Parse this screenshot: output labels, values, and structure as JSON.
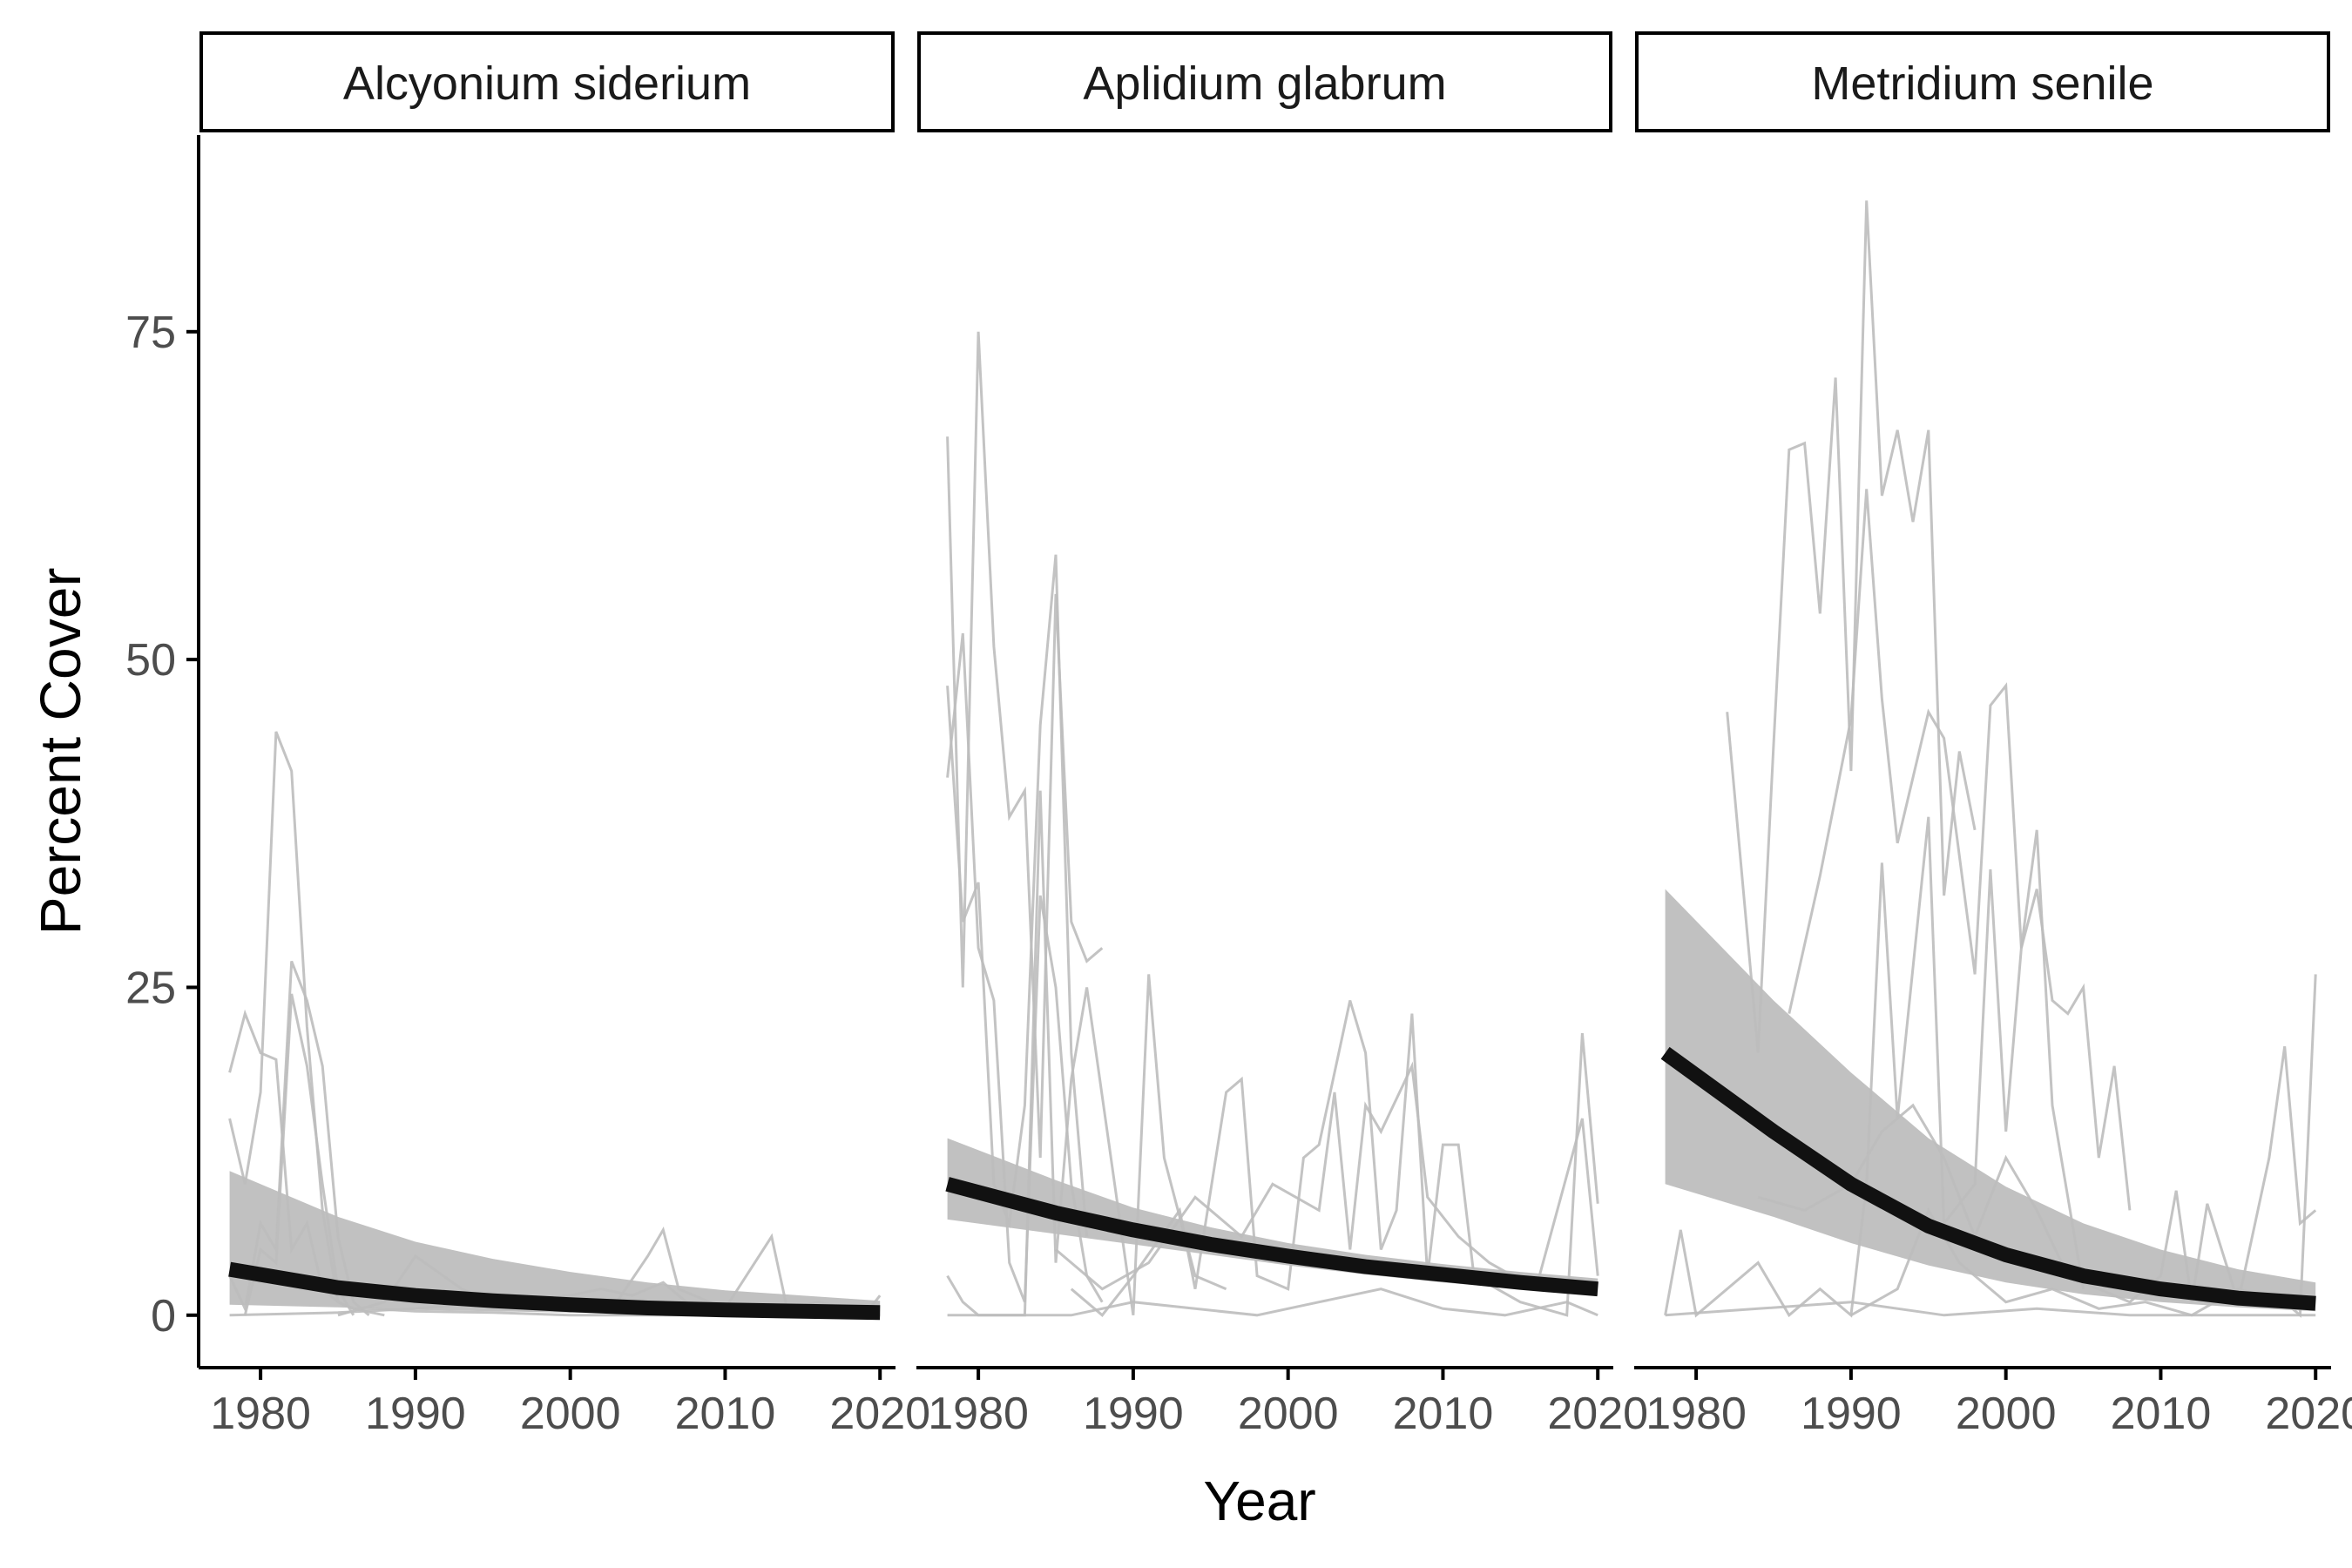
{
  "chart_data": {
    "type": "line",
    "xlabel": "Year",
    "ylabel": "Percent Cover",
    "xlim": [
      1976,
      2021
    ],
    "ylim": [
      -4,
      90
    ],
    "xticks": [
      1980,
      1990,
      2000,
      2010,
      2020
    ],
    "yticks": [
      0,
      25,
      50,
      75
    ],
    "grid": false,
    "colors": {
      "site_lines": "#bdbdbd",
      "ribbon": "#bebebe",
      "fit": "#111111",
      "axis": "#000000",
      "tick_label": "#4d4d4d"
    },
    "panels": [
      {
        "title": "Alcyonium siderium",
        "fit": {
          "x": [
            1978,
            1985,
            1990,
            1995,
            2000,
            2005,
            2010,
            2015,
            2020
          ],
          "y": [
            3.5,
            2.1,
            1.5,
            1.1,
            0.8,
            0.55,
            0.4,
            0.3,
            0.2
          ]
        },
        "ribbon": {
          "x": [
            1978,
            1985,
            1990,
            1995,
            2000,
            2005,
            2010,
            2015,
            2020
          ],
          "lower": [
            0.8,
            0.6,
            0.4,
            0.3,
            0.2,
            0.15,
            0.1,
            0.08,
            0.05
          ],
          "upper": [
            11,
            7.5,
            5.6,
            4.3,
            3.3,
            2.5,
            1.9,
            1.5,
            1.1
          ]
        },
        "sites": [
          {
            "x": [
              1978,
              1979,
              1980,
              1981,
              1982,
              1983,
              1984,
              1985,
              1986,
              1987,
              1990,
              1995,
              2000,
              2005,
              2010,
              2015,
              2020
            ],
            "y": [
              18.5,
              23,
              20,
              19.5,
              5,
              7,
              2,
              1,
              0.5,
              0.5,
              0.3,
              0.2,
              0,
              0,
              0,
              0,
              0
            ]
          },
          {
            "x": [
              1978,
              1979,
              1980,
              1981,
              1982,
              1983,
              1984,
              1985,
              1986,
              1988
            ],
            "y": [
              15,
              10,
              17,
              44.5,
              41.5,
              22,
              8,
              1,
              0.5,
              0
            ]
          },
          {
            "x": [
              1978,
              1979,
              1980,
              1981,
              1982,
              1983,
              1984,
              1985,
              1986,
              1987
            ],
            "y": [
              3,
              0.5,
              7,
              5,
              27,
              24,
              19,
              6,
              1,
              0
            ]
          },
          {
            "x": [
              1979,
              1980,
              1981,
              1982,
              1983,
              1984,
              1985,
              1986
            ],
            "y": [
              0,
              5,
              4,
              24.5,
              19,
              10,
              2,
              0
            ]
          },
          {
            "x": [
              1985,
              1988,
              1990,
              1993,
              1995,
              1998,
              2000,
              2003,
              2005,
              2006,
              2007,
              2010,
              2013,
              2014,
              2016,
              2018,
              2019,
              2020
            ],
            "y": [
              0,
              1,
              4.5,
              2,
              1,
              0.5,
              0.3,
              1,
              4.5,
              6.5,
              2,
              0.5,
              6,
              0.5,
              1,
              0.5,
              0,
              1.5
            ]
          },
          {
            "x": [
              1978,
              1985,
              1990,
              1995,
              2000,
              2002,
              2004,
              2006,
              2008,
              2010,
              2015,
              2020
            ],
            "y": [
              0,
              0.2,
              0.5,
              1,
              1.5,
              2,
              1.5,
              2.5,
              0.5,
              0,
              0,
              0
            ]
          }
        ]
      },
      {
        "title": "Aplidium glabrum",
        "fit": {
          "x": [
            1978,
            1985,
            1990,
            1995,
            2000,
            2005,
            2010,
            2015,
            2020
          ],
          "y": [
            10,
            7.8,
            6.5,
            5.4,
            4.5,
            3.7,
            3.1,
            2.5,
            2.0
          ]
        },
        "ribbon": {
          "x": [
            1978,
            1985,
            1990,
            1995,
            2000,
            2005,
            2010,
            2015,
            2020
          ],
          "lower": [
            7.3,
            6.2,
            5.4,
            4.6,
            3.8,
            3.1,
            2.5,
            2.0,
            1.5
          ],
          "upper": [
            13.5,
            10.3,
            8.2,
            6.7,
            5.5,
            4.6,
            3.9,
            3.3,
            2.8
          ]
        },
        "sites": [
          {
            "x": [
              1978,
              1979,
              1980,
              1981,
              1982,
              1983,
              1984,
              1985,
              1986,
              1987,
              1988
            ],
            "y": [
              67,
              25,
              75,
              51,
              38,
              40,
              12,
              55,
              30,
              27,
              28
            ]
          },
          {
            "x": [
              1978,
              1979,
              1980,
              1981,
              1982,
              1983,
              1984,
              1985,
              1986,
              1987
            ],
            "y": [
              48,
              30,
              33,
              10,
              7,
              16,
              45,
              58,
              20,
              6
            ]
          },
          {
            "x": [
              1978,
              1979,
              1980,
              1981,
              1982,
              1983,
              1984,
              1985,
              1986,
              1987,
              1988
            ],
            "y": [
              41,
              52,
              28,
              24,
              4,
              1,
              32,
              25,
              10,
              3,
              1
            ]
          },
          {
            "x": [
              1978,
              1979,
              1980,
              1983,
              1984,
              1985,
              1986,
              1987,
              1990,
              1991,
              1992,
              1994,
              1996
            ],
            "y": [
              3,
              1,
              0,
              0,
              40,
              4,
              18,
              25,
              0,
              26,
              12,
              3,
              2
            ]
          },
          {
            "x": [
              1986,
              1988,
              1990,
              1993,
              1994,
              1996,
              1997,
              1998,
              2000,
              2001,
              2002,
              2004,
              2005,
              2006,
              2007,
              2008,
              2009,
              2010,
              2011,
              2012,
              2015,
              2018,
              2019,
              2020
            ],
            "y": [
              2,
              0,
              3,
              8,
              2,
              17,
              18,
              3,
              2,
              12,
              13,
              24,
              20,
              5,
              8,
              23,
              3,
              13,
              13,
              3,
              1,
              0,
              21.5,
              8.5
            ]
          },
          {
            "x": [
              1985,
              1988,
              1991,
              1994,
              1997,
              1999,
              2002,
              2003,
              2004,
              2005,
              2006,
              2008,
              2009,
              2011,
              2013,
              2016,
              2019,
              2020
            ],
            "y": [
              5,
              2,
              4,
              9,
              6,
              10,
              8,
              17,
              5,
              16,
              14,
              19,
              9,
              6,
              4,
              2,
              15,
              3
            ]
          },
          {
            "x": [
              1978,
              1982,
              1986,
              1990,
              1994,
              1998,
              2002,
              2006,
              2010,
              2014,
              2018,
              2020
            ],
            "y": [
              0,
              0,
              0,
              1,
              0.5,
              0,
              1,
              2,
              0.5,
              0,
              1,
              0
            ]
          }
        ]
      },
      {
        "title": "Metridium senile",
        "fit": {
          "x": [
            1978,
            1985,
            1990,
            1995,
            2000,
            2005,
            2010,
            2015,
            2020
          ],
          "y": [
            20,
            14,
            10,
            6.8,
            4.6,
            3.0,
            2.0,
            1.3,
            0.9
          ]
        },
        "ribbon": {
          "x": [
            1978,
            1985,
            1990,
            1995,
            2000,
            2005,
            2010,
            2015,
            2020
          ],
          "lower": [
            10,
            7.5,
            5.5,
            3.8,
            2.5,
            1.6,
            1.0,
            0.6,
            0.3
          ],
          "upper": [
            32.5,
            24,
            18.5,
            13.5,
            9.8,
            7.0,
            5.0,
            3.5,
            2.5
          ]
        },
        "sites": [
          {
            "x": [
              1982,
              1984,
              1985,
              1986,
              1987,
              1988,
              1989,
              1990,
              1991,
              1992,
              1993,
              1994,
              1995,
              1996,
              1997,
              1998
            ],
            "y": [
              46,
              20,
              43.5,
              66,
              66.5,
              53.5,
              71.5,
              41.5,
              85,
              62.5,
              67.5,
              60.5,
              67.5,
              32,
              43,
              37
            ]
          },
          {
            "x": [
              1986,
              1988,
              1990,
              1991,
              1992,
              1993,
              1994,
              1995,
              1996,
              1998,
              1999,
              2000,
              2001,
              2002,
              2003,
              2004,
              2005,
              2006,
              2007,
              2008
            ],
            "y": [
              23,
              33.5,
              45.5,
              63,
              47,
              36,
              41,
              46,
              44,
              26,
              46.5,
              48,
              28,
              32.5,
              24,
              23,
              25,
              12,
              19,
              8
            ]
          },
          {
            "x": [
              1978,
              1979,
              1980,
              1984,
              1986,
              1988,
              1990,
              1991,
              1992,
              1993,
              1995,
              1996,
              1998,
              1999,
              2000,
              2001,
              2002,
              2003,
              2005
            ],
            "y": [
              0,
              6.5,
              0,
              4,
              0,
              2,
              0,
              10,
              34.5,
              15,
              38,
              7,
              10,
              34,
              14,
              28,
              37,
              16,
              2
            ]
          },
          {
            "x": [
              1984,
              1987,
              1990,
              1992,
              1994,
              1996,
              1998,
              2000,
              2002,
              2004,
              2006,
              2008,
              2010,
              2011,
              2012,
              2013,
              2015,
              2017,
              2018,
              2019,
              2020
            ],
            "y": [
              9,
              8,
              10,
              14,
              16,
              12,
              6,
              12,
              8,
              3,
              2,
              1,
              3,
              9.5,
              1,
              8.5,
              1,
              12,
              20.5,
              7,
              8
            ]
          },
          {
            "x": [
              1990,
              1993,
              1995,
              1997,
              2000,
              2003,
              2006,
              2009,
              2012,
              2015,
              2018,
              2019,
              2020
            ],
            "y": [
              0,
              2,
              8,
              4,
              1,
              2,
              0.5,
              1,
              0,
              2,
              1,
              0,
              26
            ]
          },
          {
            "x": [
              1978,
              1984,
              1990,
              1996,
              2002,
              2008,
              2014,
              2020
            ],
            "y": [
              0,
              0.5,
              1,
              0,
              0.5,
              0,
              0,
              0
            ]
          }
        ]
      }
    ]
  }
}
